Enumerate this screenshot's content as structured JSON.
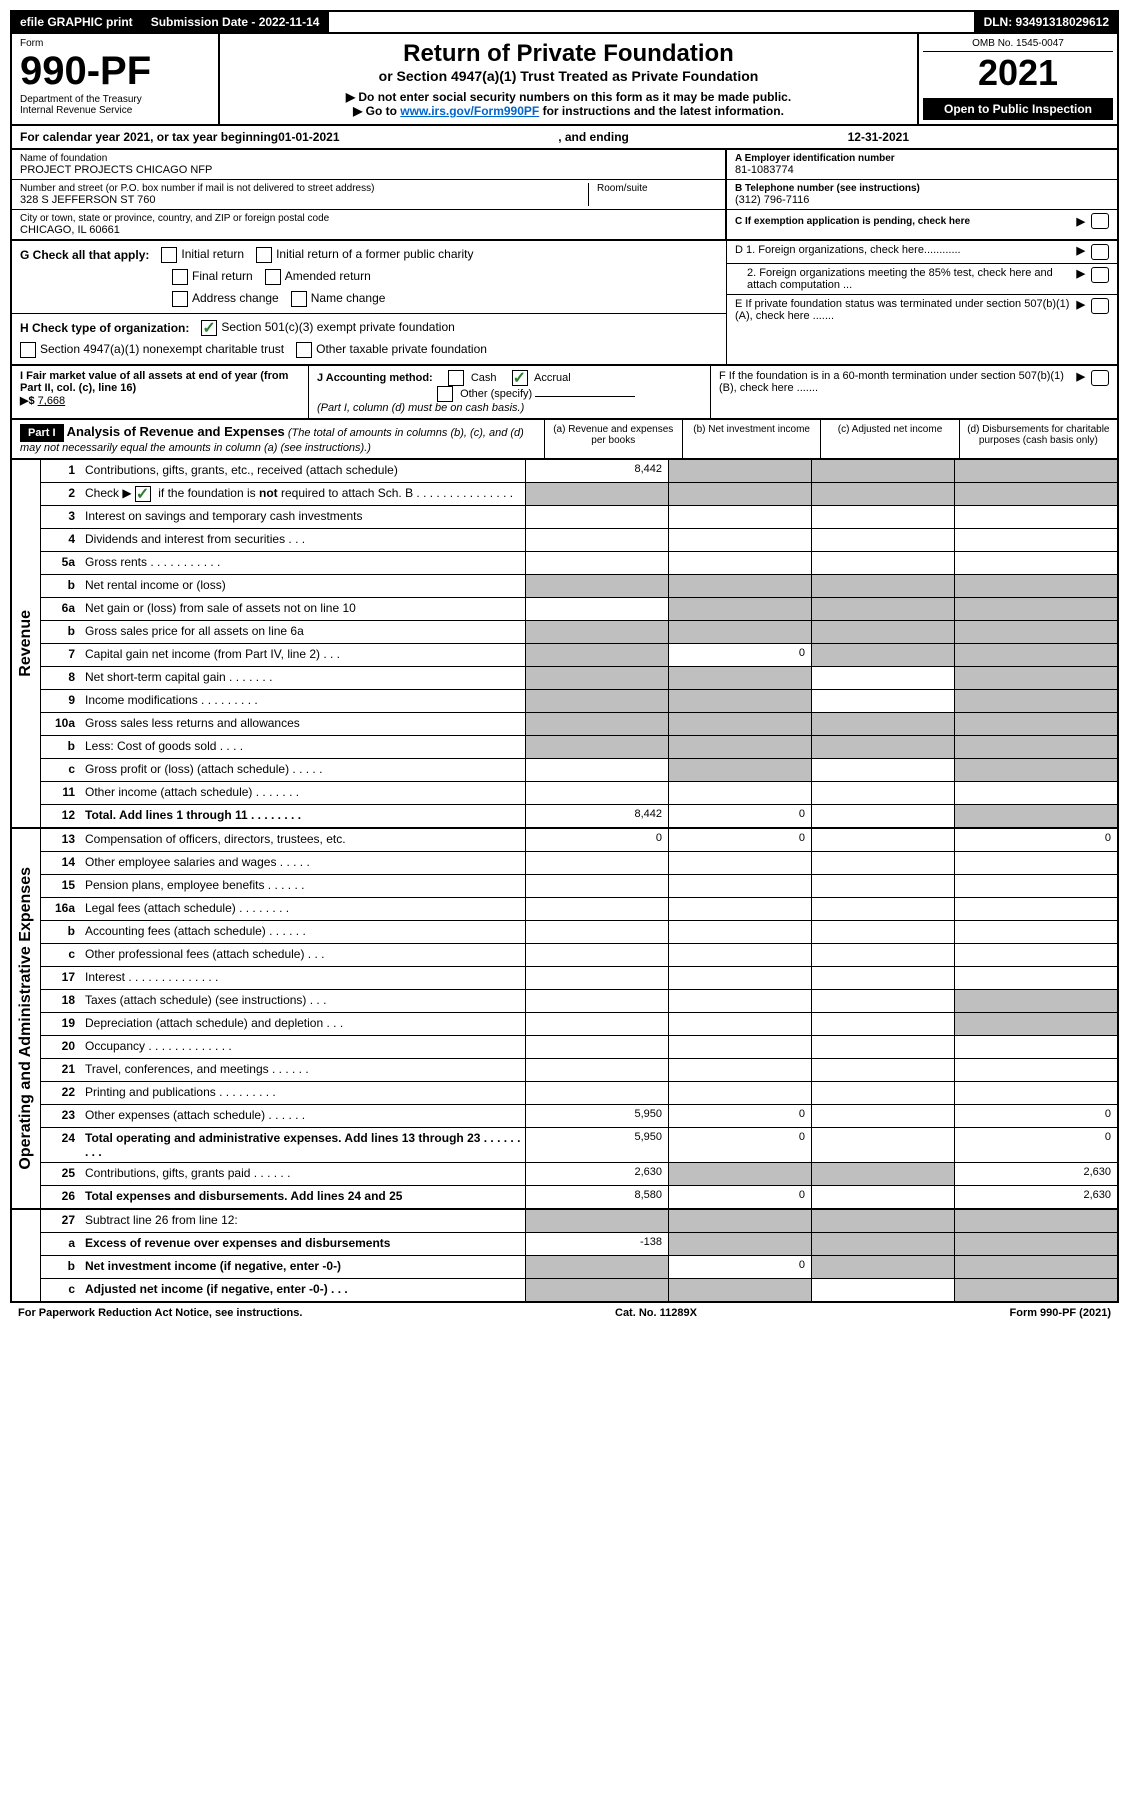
{
  "topbar": {
    "efile": "efile GRAPHIC print",
    "submission_label": "Submission Date - 2022-11-14",
    "dln": "DLN: 93491318029612"
  },
  "header": {
    "form_label": "Form",
    "form_number": "990-PF",
    "dept": "Department of the Treasury",
    "irs": "Internal Revenue Service",
    "title": "Return of Private Foundation",
    "subtitle": "or Section 4947(a)(1) Trust Treated as Private Foundation",
    "note1": "▶ Do not enter social security numbers on this form as it may be made public.",
    "note2_prefix": "▶ Go to ",
    "note2_link": "www.irs.gov/Form990PF",
    "note2_suffix": " for instructions and the latest information.",
    "omb": "OMB No. 1545-0047",
    "year": "2021",
    "open": "Open to Public Inspection"
  },
  "calyear": {
    "prefix": "For calendar year 2021, or tax year beginning ",
    "begin": "01-01-2021",
    "mid": " , and ending ",
    "end": "12-31-2021"
  },
  "foundation": {
    "name_label": "Name of foundation",
    "name": "PROJECT PROJECTS CHICAGO NFP",
    "addr_label": "Number and street (or P.O. box number if mail is not delivered to street address)",
    "addr": "328 S JEFFERSON ST 760",
    "room_label": "Room/suite",
    "city_label": "City or town, state or province, country, and ZIP or foreign postal code",
    "city": "CHICAGO, IL  60661",
    "ein_label": "A Employer identification number",
    "ein": "81-1083774",
    "phone_label": "B Telephone number (see instructions)",
    "phone": "(312) 796-7116",
    "c_label": "C If exemption application is pending, check here",
    "d1_label": "D 1. Foreign organizations, check here............",
    "d2_label": "2. Foreign organizations meeting the 85% test, check here and attach computation ...",
    "e_label": "E  If private foundation status was terminated under section 507(b)(1)(A), check here .......",
    "f_label": "F  If the foundation is in a 60-month termination under section 507(b)(1)(B), check here ......."
  },
  "g": {
    "label": "G Check all that apply:",
    "initial": "Initial return",
    "initial_former": "Initial return of a former public charity",
    "final": "Final return",
    "amended": "Amended return",
    "address": "Address change",
    "name_change": "Name change"
  },
  "h": {
    "label": "H Check type of organization:",
    "opt1": "Section 501(c)(3) exempt private foundation",
    "opt2": "Section 4947(a)(1) nonexempt charitable trust",
    "opt3": "Other taxable private foundation"
  },
  "i": {
    "label": "I Fair market value of all assets at end of year (from Part II, col. (c), line 16)",
    "arrow": "▶$ ",
    "value": "7,668"
  },
  "j": {
    "label": "J Accounting method:",
    "cash": "Cash",
    "accrual": "Accrual",
    "other": "Other (specify)",
    "note": "(Part I, column (d) must be on cash basis.)"
  },
  "part1": {
    "label": "Part I",
    "title": "Analysis of Revenue and Expenses",
    "subtitle": " (The total of amounts in columns (b), (c), and (d) may not necessarily equal the amounts in column (a) (see instructions).)",
    "col_a": "(a)    Revenue and expenses per books",
    "col_b": "(b)    Net investment income",
    "col_c": "(c)    Adjusted net income",
    "col_d": "(d)    Disbursements for charitable purposes (cash basis only)"
  },
  "side_labels": {
    "revenue": "Revenue",
    "expenses": "Operating and Administrative Expenses"
  },
  "lines": {
    "l1": {
      "n": "1",
      "d": "Contributions, gifts, grants, etc., received (attach schedule)",
      "a": "8,442"
    },
    "l2": {
      "n": "2",
      "d": "Check ▶     if the foundation is not required to attach Sch. B",
      "checked": true
    },
    "l3": {
      "n": "3",
      "d": "Interest on savings and temporary cash investments"
    },
    "l4": {
      "n": "4",
      "d": "Dividends and interest from securities   .   .   ."
    },
    "l5a": {
      "n": "5a",
      "d": "Gross rents    .   .   .   .   .   .   .   .   .   .   ."
    },
    "l5b": {
      "n": "b",
      "d": "Net rental income or (loss)  "
    },
    "l6a": {
      "n": "6a",
      "d": "Net gain or (loss) from sale of assets not on line 10"
    },
    "l6b": {
      "n": "b",
      "d": "Gross sales price for all assets on line 6a"
    },
    "l7": {
      "n": "7",
      "d": "Capital gain net income (from Part IV, line 2)   .   .   .",
      "b": "0"
    },
    "l8": {
      "n": "8",
      "d": "Net short-term capital gain   .   .   .   .   .   .   ."
    },
    "l9": {
      "n": "9",
      "d": "Income modifications   .   .   .   .   .   .   .   .   ."
    },
    "l10a": {
      "n": "10a",
      "d": "Gross sales less returns and allowances"
    },
    "l10b": {
      "n": "b",
      "d": "Less: Cost of goods sold   .   .   .   ."
    },
    "l10c": {
      "n": "c",
      "d": "Gross profit or (loss) (attach schedule)   .   .   .   .   ."
    },
    "l11": {
      "n": "11",
      "d": "Other income (attach schedule)   .   .   .   .   .   .   ."
    },
    "l12": {
      "n": "12",
      "d": "Total. Add lines 1 through 11   .   .   .   .   .   .   .   .",
      "a": "8,442",
      "b": "0"
    },
    "l13": {
      "n": "13",
      "d": "Compensation of officers, directors, trustees, etc.",
      "a": "0",
      "b": "0",
      "dd": "0"
    },
    "l14": {
      "n": "14",
      "d": "Other employee salaries and wages   .   .   .   .   ."
    },
    "l15": {
      "n": "15",
      "d": "Pension plans, employee benefits   .   .   .   .   .   ."
    },
    "l16a": {
      "n": "16a",
      "d": "Legal fees (attach schedule)   .   .   .   .   .   .   .   ."
    },
    "l16b": {
      "n": "b",
      "d": "Accounting fees (attach schedule)   .   .   .   .   .   ."
    },
    "l16c": {
      "n": "c",
      "d": "Other professional fees (attach schedule)   .   .   ."
    },
    "l17": {
      "n": "17",
      "d": "Interest   .   .   .   .   .   .   .   .   .   .   .   .   .   ."
    },
    "l18": {
      "n": "18",
      "d": "Taxes (attach schedule) (see instructions)   .   .   ."
    },
    "l19": {
      "n": "19",
      "d": "Depreciation (attach schedule) and depletion   .   .   ."
    },
    "l20": {
      "n": "20",
      "d": "Occupancy   .   .   .   .   .   .   .   .   .   .   .   .   ."
    },
    "l21": {
      "n": "21",
      "d": "Travel, conferences, and meetings   .   .   .   .   .   ."
    },
    "l22": {
      "n": "22",
      "d": "Printing and publications   .   .   .   .   .   .   .   .   ."
    },
    "l23": {
      "n": "23",
      "d": "Other expenses (attach schedule)   .   .   .   .   .   .",
      "a": "5,950",
      "b": "0",
      "dd": "0"
    },
    "l24": {
      "n": "24",
      "d": "Total operating and administrative expenses. Add lines 13 through 23   .   .   .   .   .   .   .   .   .",
      "a": "5,950",
      "b": "0",
      "dd": "0"
    },
    "l25": {
      "n": "25",
      "d": "Contributions, gifts, grants paid   .   .   .   .   .   .",
      "a": "2,630",
      "dd": "2,630"
    },
    "l26": {
      "n": "26",
      "d": "Total expenses and disbursements. Add lines 24 and 25",
      "a": "8,580",
      "b": "0",
      "dd": "2,630"
    },
    "l27": {
      "n": "27",
      "d": "Subtract line 26 from line 12:"
    },
    "l27a": {
      "n": "a",
      "d": "Excess of revenue over expenses and disbursements",
      "a": "-138"
    },
    "l27b": {
      "n": "b",
      "d": "Net investment income (if negative, enter -0-)",
      "b": "0"
    },
    "l27c": {
      "n": "c",
      "d": "Adjusted net income (if negative, enter -0-)   .   .   ."
    }
  },
  "footer": {
    "left": "For Paperwork Reduction Act Notice, see instructions.",
    "mid": "Cat. No. 11289X",
    "right": "Form 990-PF (2021)"
  },
  "colors": {
    "grey": "#bfbfbf",
    "black": "#000000",
    "link": "#0066cc",
    "check": "#2e7d32"
  }
}
